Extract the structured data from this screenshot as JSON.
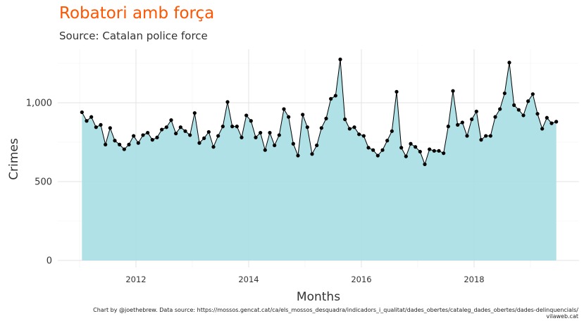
{
  "chart_data": {
    "type": "area",
    "title": "Robatori amb força",
    "subtitle": "Source: Catalan police force",
    "xlabel": "Months",
    "ylabel": "Crimes",
    "caption_line1": "Chart by @joethebrew. Data source: https://mossos.gencat.cat/ca/els_mossos_desquadra/indicadors_i_qualitat/dades_obertes/cataleg_dades_obertes/dades-delinquencials/",
    "caption_line2": "vilaweb.cat",
    "x_start": "2011-01",
    "x_end": "2019-06",
    "x_ticks": [
      2012,
      2014,
      2016,
      2018
    ],
    "x_tick_labels": [
      "2012",
      "2014",
      "2016",
      "2018"
    ],
    "ylim": [
      0,
      1300
    ],
    "y_ticks": [
      0,
      500,
      1000
    ],
    "y_tick_labels": [
      "0",
      "500",
      "1,000"
    ],
    "grid": true,
    "fill_color": "#abdfe5",
    "line_color": "#000000",
    "point_color": "#000000",
    "title_color": "#ff5500",
    "values": [
      940,
      885,
      910,
      845,
      860,
      735,
      840,
      760,
      735,
      705,
      735,
      790,
      745,
      795,
      810,
      765,
      780,
      830,
      845,
      890,
      805,
      845,
      820,
      795,
      935,
      745,
      775,
      815,
      720,
      790,
      850,
      1005,
      850,
      850,
      780,
      920,
      885,
      780,
      810,
      700,
      810,
      730,
      795,
      960,
      910,
      740,
      665,
      925,
      845,
      675,
      730,
      840,
      900,
      1025,
      1045,
      1275,
      895,
      835,
      845,
      800,
      790,
      715,
      700,
      665,
      700,
      760,
      820,
      1070,
      715,
      660,
      740,
      720,
      690,
      610,
      705,
      695,
      695,
      680,
      850,
      1075,
      860,
      875,
      790,
      895,
      945,
      765,
      790,
      790,
      910,
      960,
      1060,
      1255,
      985,
      955,
      920,
      1010,
      1055,
      930,
      835,
      905,
      870,
      880
    ]
  }
}
